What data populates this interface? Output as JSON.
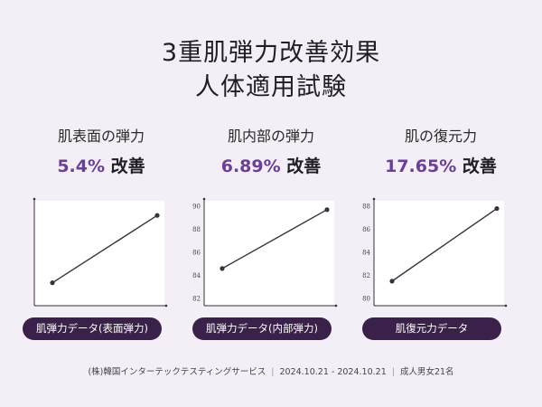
{
  "title_line1": "3重肌弾力改善効果",
  "title_line2": "人体適用試験",
  "panels": [
    {
      "label": "肌表面の弾力",
      "value_number": "5.4%",
      "value_suffix": " 改善",
      "pill": "肌弾力データ(表面弾力)"
    },
    {
      "label": "肌内部の弾力",
      "value_number": "6.89%",
      "value_suffix": " 改善",
      "pill": "肌弾力データ(内部弾力)"
    },
    {
      "label": "肌の復元力",
      "value_number": "17.65%",
      "value_suffix": " 改善",
      "pill": "肌復元力データ"
    }
  ],
  "footer": {
    "org": "(株)韓国インターテックテスティングサービス",
    "period": "2024.10.21 - 2024.10.21",
    "subjects": "成人男女21名"
  },
  "chart_data": [
    {
      "type": "line",
      "title": "",
      "ytick_labels": [],
      "x": [
        0,
        1
      ],
      "values": [
        0.17,
        0.9
      ],
      "colors": {
        "line": "#3a2f3f",
        "point": "#3a2f3f"
      }
    },
    {
      "type": "line",
      "title": "",
      "ylim": [
        82,
        90
      ],
      "ytick_labels": [
        "90",
        "88",
        "86",
        "84",
        "82"
      ],
      "x": [
        0,
        1
      ],
      "values": [
        84.6,
        89.7
      ],
      "colors": {
        "line": "#3a2f3f",
        "point": "#3a2f3f"
      }
    },
    {
      "type": "line",
      "title": "",
      "ylim": [
        80,
        88
      ],
      "ytick_labels": [
        "88",
        "86",
        "84",
        "82",
        "80"
      ],
      "x": [
        0,
        1
      ],
      "values": [
        81.5,
        87.8
      ],
      "colors": {
        "line": "#3a2f3f",
        "point": "#3a2f3f"
      }
    }
  ]
}
